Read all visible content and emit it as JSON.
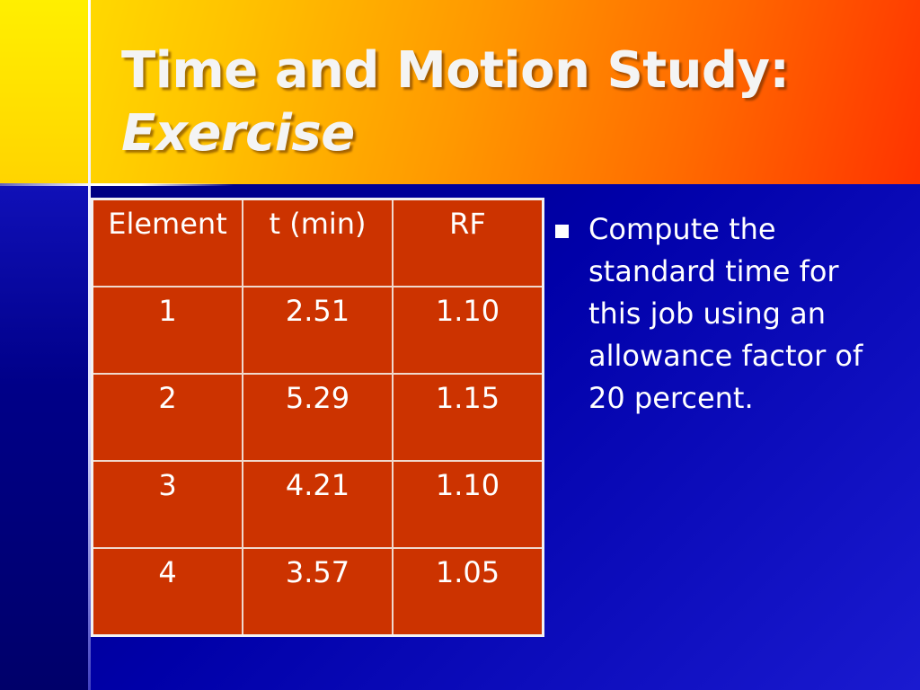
{
  "slide": {
    "title_line1": "Time and Motion Study:",
    "title_line2": "Exercise",
    "table": {
      "headers": [
        "Element",
        "t (min)",
        "RF"
      ],
      "rows": [
        [
          "1",
          "2.51",
          "1.10"
        ],
        [
          "2",
          "5.29",
          "1.15"
        ],
        [
          "3",
          "4.21",
          "1.10"
        ],
        [
          "4",
          "3.57",
          "1.05"
        ]
      ]
    },
    "bullet": "Compute the standard time for this job using an allowance factor of 20 percent."
  },
  "colors": {
    "table_fill": "#cc3300",
    "background": "#0000a8",
    "header_gradient_start": "#ffe600",
    "header_gradient_end": "#ff3300"
  }
}
